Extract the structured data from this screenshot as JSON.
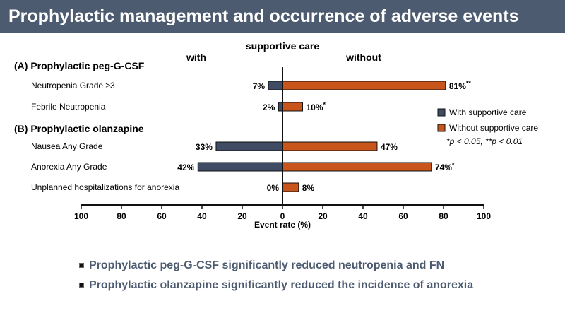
{
  "header": {
    "title": "Prophylactic management and occurrence of adverse events"
  },
  "chart_data": {
    "type": "bar",
    "orientation": "horizontal-butterfly",
    "title": "supportive care",
    "left_label": "with",
    "right_label": "without",
    "xlabel": "Event rate (%)",
    "xlim": [
      -100,
      100
    ],
    "xticks": [
      100,
      80,
      60,
      40,
      20,
      0,
      20,
      40,
      60,
      80,
      100
    ],
    "groups": [
      {
        "label": "(A) Prophylactic peg-G-CSF"
      },
      {
        "label": "(B) Prophylactic olanzapine"
      }
    ],
    "categories": [
      "Neutropenia  Grade ≥3",
      "Febrile Neutropenia",
      "Nausea  Any Grade",
      "Anorexia Any Grade",
      "Unplanned hospitalizations for anorexia"
    ],
    "series": [
      {
        "name": "With supportive care",
        "color": "#3f4c63",
        "values": [
          7,
          2,
          33,
          42,
          0
        ],
        "labels": [
          "7%",
          "2%",
          "33%",
          "42%",
          "0%"
        ]
      },
      {
        "name": "Without supportive care",
        "color": "#c8551c",
        "values": [
          81,
          10,
          47,
          74,
          8
        ],
        "labels": [
          "81%",
          "10%",
          "47%",
          "74%",
          "8%"
        ],
        "significance": [
          "**",
          "*",
          "",
          "*",
          ""
        ]
      }
    ],
    "legend": {
      "position": "right",
      "note": "*p < 0.05, **p < 0.01"
    }
  },
  "bullets": [
    "Prophylactic peg-G-CSF significantly reduced neutropenia and FN",
    "Prophylactic olanzapine significantly reduced the incidence of anorexia"
  ]
}
